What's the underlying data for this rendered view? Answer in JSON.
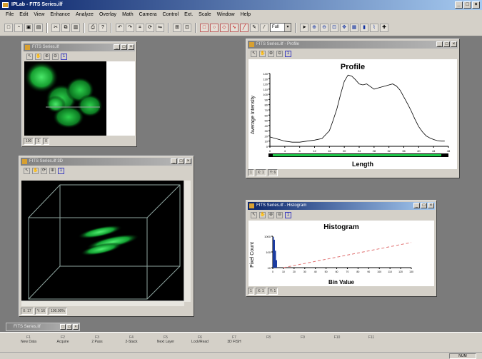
{
  "app": {
    "title": "IPLab - FITS Series.ilf",
    "menu": [
      "File",
      "Edit",
      "View",
      "Enhance",
      "Analyze",
      "Overlay",
      "Math",
      "Camera",
      "Control",
      "Ext.",
      "Scale",
      "Window",
      "Help"
    ],
    "toolbar_zoom": "Full",
    "colors": {
      "titlebar": "#0a246a",
      "face": "#d4d0c8",
      "desktop": "#7b7b7b",
      "green": "#1ec84a"
    }
  },
  "image_window": {
    "title": "FITS Series.ilf",
    "page": "1",
    "status": [
      "100",
      "1",
      "0"
    ]
  },
  "volume_window": {
    "title": "FITS Series.ilf 3D",
    "page": "1",
    "status": [
      "X: 17",
      "Y: 16",
      "100.00%"
    ]
  },
  "profile_window": {
    "title": "FITS Series.ilf - Profile",
    "page": "1",
    "status": [
      "1",
      "X: 1",
      "Y: 6"
    ],
    "chart_data": {
      "type": "line",
      "title": "Profile",
      "xlabel": "Length",
      "ylabel": "Average Intensity",
      "x_ticks": [
        "0",
        "4",
        "8",
        "12",
        "16",
        "20",
        "24",
        "28",
        "32",
        "36",
        "40",
        "44",
        "48"
      ],
      "y_ticks": [
        "0",
        "10",
        "20",
        "30",
        "40",
        "50",
        "60",
        "70",
        "80",
        "90",
        "100",
        "110",
        "120",
        "130",
        "140"
      ],
      "xlim": [
        0,
        48
      ],
      "ylim": [
        0,
        140
      ],
      "grid": false,
      "series": [
        {
          "x": [
            0,
            2,
            4,
            6,
            8,
            10,
            12,
            14,
            16,
            17,
            18,
            19,
            20,
            21,
            22,
            23,
            24,
            25,
            26,
            27,
            28,
            29,
            30,
            31,
            32,
            33,
            34,
            35,
            36,
            37,
            38,
            39,
            40,
            41,
            42,
            43,
            44,
            45,
            46,
            47
          ],
          "y": [
            18,
            14,
            10,
            8,
            8,
            10,
            12,
            15,
            30,
            50,
            72,
            100,
            125,
            137,
            135,
            128,
            120,
            118,
            120,
            115,
            110,
            112,
            114,
            116,
            118,
            120,
            116,
            108,
            95,
            82,
            68,
            52,
            38,
            28,
            20,
            16,
            13,
            11,
            10,
            10
          ]
        }
      ]
    }
  },
  "histogram_window": {
    "title": "FITS Series.ilf - Histogram",
    "page": "1",
    "status": [
      "1",
      "X: 1",
      "Y: 1"
    ],
    "chart_data": {
      "type": "bar",
      "title": "Histogram",
      "xlabel": "Bin Value",
      "ylabel": "Pixel Count",
      "y_ticks": [
        "1000",
        "100",
        "10"
      ],
      "x_ticks": [
        "0",
        "10",
        "20",
        "30",
        "40",
        "50",
        "60",
        "70",
        "80",
        "90",
        "100",
        "110",
        "120",
        "130"
      ],
      "yscale": "log",
      "xlim": [
        0,
        130
      ],
      "series": [
        {
          "x": [
            0,
            1,
            2,
            3,
            4
          ],
          "y": [
            900,
            600,
            120,
            30,
            10
          ]
        }
      ],
      "reference_line": {
        "x": [
          10,
          130
        ],
        "y": [
          10,
          400
        ]
      }
    }
  },
  "minimized_window": {
    "title": "FITS Series.ilf"
  },
  "function_keys": [
    {
      "key": "F1",
      "label": "New Data"
    },
    {
      "key": "F2",
      "label": "Acquire"
    },
    {
      "key": "F3",
      "label": "2 Pass"
    },
    {
      "key": "F4",
      "label": "2-Stack"
    },
    {
      "key": "F5",
      "label": "Next Layer"
    },
    {
      "key": "F6",
      "label": "Lock/Read"
    },
    {
      "key": "F7",
      "label": "3D FISH"
    },
    {
      "key": "F8",
      "label": ""
    },
    {
      "key": "F9",
      "label": ""
    },
    {
      "key": "F10",
      "label": ""
    },
    {
      "key": "F11",
      "label": ""
    }
  ],
  "statusbar": {
    "mode": "NUM"
  }
}
